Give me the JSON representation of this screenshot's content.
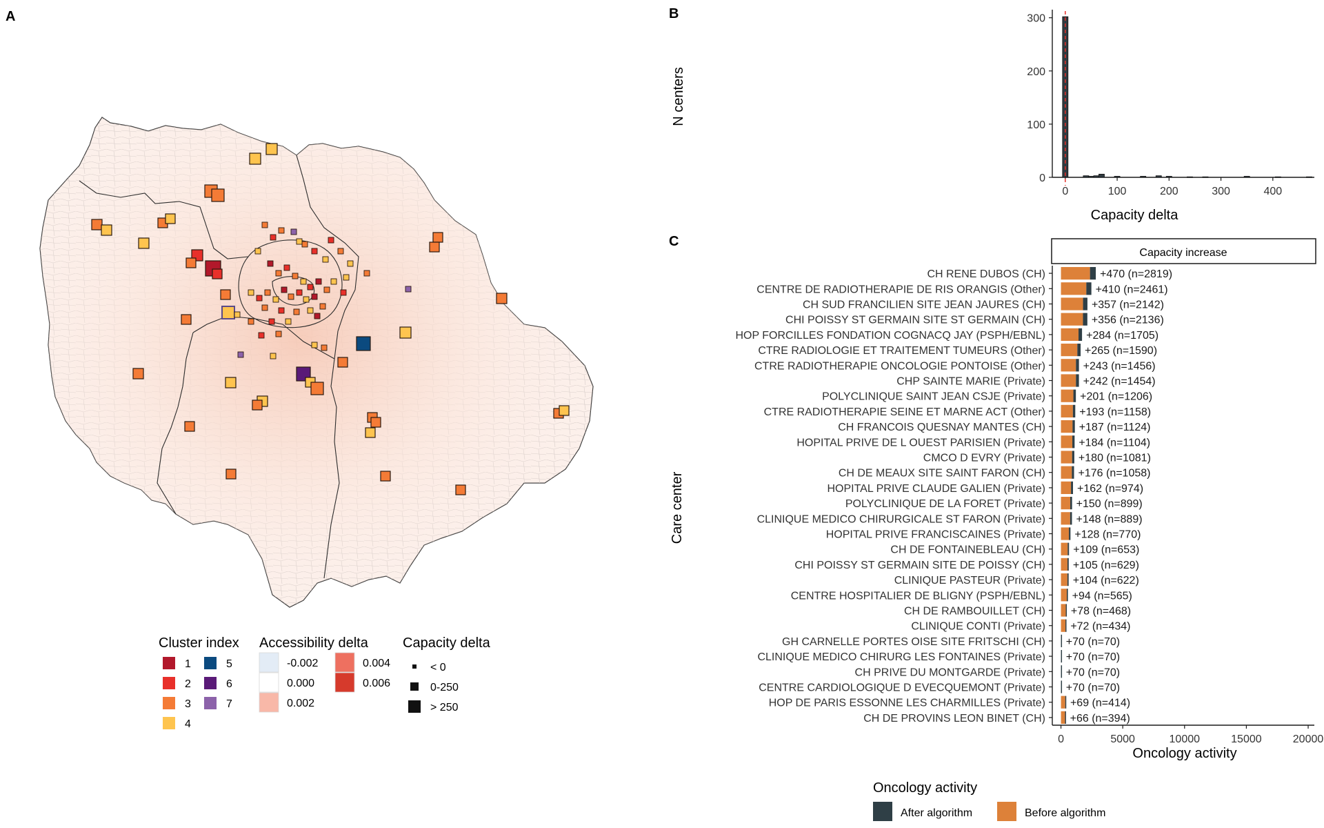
{
  "panels": {
    "a": {
      "letter": "A"
    },
    "b": {
      "letter": "B"
    },
    "c": {
      "letter": "C"
    }
  },
  "map": {
    "legend": {
      "cluster": {
        "title": "Cluster index",
        "items": [
          {
            "label": "1",
            "color": "#B2182B"
          },
          {
            "label": "2",
            "color": "#E8302A"
          },
          {
            "label": "3",
            "color": "#F47B36"
          },
          {
            "label": "4",
            "color": "#FEC44F"
          },
          {
            "label": "5",
            "color": "#0B4A7F"
          },
          {
            "label": "6",
            "color": "#5A1A78"
          },
          {
            "label": "7",
            "color": "#8C62AA"
          }
        ]
      },
      "accessibility": {
        "title": "Accessibility delta",
        "items": [
          {
            "label": "-0.002",
            "color": "#E3ECF6"
          },
          {
            "label": "0.000",
            "color": "#FFFFFF"
          },
          {
            "label": "0.002",
            "color": "#F8B8A8"
          },
          {
            "label": "0.004",
            "color": "#EE7060"
          },
          {
            "label": "0.006",
            "color": "#D63A2C"
          }
        ]
      },
      "capacity": {
        "title": "Capacity delta",
        "items": [
          {
            "label": "< 0",
            "level": 0
          },
          {
            "label": "0-250",
            "level": 1
          },
          {
            "label": "> 250",
            "level": 2
          }
        ]
      }
    }
  },
  "chart_data": [
    {
      "type": "bar",
      "panel": "B",
      "subtype": "histogram",
      "xlabel": "Capacity delta",
      "ylabel": "N centers",
      "xlim": [
        -25,
        480
      ],
      "ylim": [
        0,
        310
      ],
      "xticks": [
        0,
        100,
        200,
        300,
        400
      ],
      "yticks": [
        0,
        100,
        200,
        300
      ],
      "reference_line_x": 0,
      "reference_line_color": "#E8302A",
      "bar_color": "#2F3A40",
      "bins": [
        {
          "x": 0,
          "count": 302
        },
        {
          "x": 40,
          "count": 3
        },
        {
          "x": 50,
          "count": 2
        },
        {
          "x": 60,
          "count": 3
        },
        {
          "x": 70,
          "count": 6
        },
        {
          "x": 100,
          "count": 2
        },
        {
          "x": 150,
          "count": 2
        },
        {
          "x": 180,
          "count": 3
        },
        {
          "x": 200,
          "count": 2
        },
        {
          "x": 240,
          "count": 1
        },
        {
          "x": 270,
          "count": 1
        },
        {
          "x": 350,
          "count": 2
        },
        {
          "x": 410,
          "count": 1
        },
        {
          "x": 470,
          "count": 1
        }
      ]
    },
    {
      "type": "bar",
      "panel": "C",
      "orientation": "horizontal",
      "stacked": true,
      "facet_title": "Capacity increase",
      "xlabel": "Oncology activity",
      "ylabel": "Care center",
      "xlim": [
        -700,
        20500
      ],
      "xticks": [
        "0",
        "5000",
        "10000",
        "15000",
        "20000"
      ],
      "legend": {
        "title": "Oncology activity",
        "position": "bottom",
        "items": [
          {
            "label": "After algorithm",
            "color": "#2F3F46"
          },
          {
            "label": "Before algorithm",
            "color": "#DD8139"
          }
        ]
      },
      "categories": [
        "CH RENE DUBOS (CH)",
        "CENTRE DE RADIOTHERAPIE DE RIS ORANGIS (Other)",
        "CH SUD FRANCILIEN SITE JEAN JAURES (CH)",
        "CHI POISSY ST GERMAIN SITE ST GERMAIN (CH)",
        "HOP FORCILLES FONDATION COGNACQ JAY (PSPH/EBNL)",
        "CTRE RADIOLOGIE ET TRAITEMENT TUMEURS (Other)",
        "CTRE RADIOTHERAPIE ONCOLOGIE PONTOISE (Other)",
        "CHP SAINTE MARIE (Private)",
        "POLYCLINIQUE SAINT JEAN CSJE (Private)",
        "CTRE RADIOTHERAPIE SEINE ET MARNE ACT (Other)",
        "CH FRANCOIS QUESNAY MANTES (CH)",
        "HOPITAL PRIVE DE L OUEST PARISIEN (Private)",
        "CMCO D EVRY (Private)",
        "CH DE MEAUX  SITE SAINT FARON (CH)",
        "HOPITAL PRIVE CLAUDE GALIEN (Private)",
        "POLYCLINIQUE DE LA FORET (Private)",
        "CLINIQUE MEDICO CHIRURGICALE ST FARON (Private)",
        "HOPITAL PRIVE FRANCISCAINES (Private)",
        "CH DE FONTAINEBLEAU (CH)",
        "CHI POISSY ST GERMAIN SITE DE POISSY (CH)",
        "CLINIQUE PASTEUR (Private)",
        "CENTRE HOSPITALIER DE BLIGNY (PSPH/EBNL)",
        "CH DE RAMBOUILLET (CH)",
        "CLINIQUE CONTI (Private)",
        "GH CARNELLE PORTES OISE SITE FRITSCHI (CH)",
        "CLINIQUE MEDICO CHIRURG LES FONTAINES (Private)",
        "CH PRIVE DU MONTGARDE (Private)",
        "CENTRE CARDIOLOGIQUE D EVECQUEMONT (Private)",
        "HOP DE PARIS ESSONNE LES CHARMILLES (Private)",
        "CH DE PROVINS LEON BINET (CH)"
      ],
      "series": [
        {
          "name": "Before algorithm",
          "values": [
            2349,
            2051,
            1785,
            1780,
            1421,
            1325,
            1213,
            1212,
            1005,
            965,
            937,
            920,
            901,
            882,
            812,
            749,
            741,
            642,
            544,
            524,
            518,
            471,
            390,
            362,
            0,
            0,
            0,
            0,
            345,
            328
          ]
        },
        {
          "name": "After algorithm",
          "values": [
            470,
            410,
            357,
            356,
            284,
            265,
            243,
            242,
            201,
            193,
            187,
            184,
            180,
            176,
            162,
            150,
            148,
            128,
            109,
            105,
            104,
            94,
            78,
            72,
            70,
            70,
            70,
            70,
            69,
            66
          ]
        }
      ],
      "data_labels": [
        "+470 (n=2819)",
        "+410 (n=2461)",
        "+357 (n=2142)",
        "+356 (n=2136)",
        "+284 (n=1705)",
        "+265 (n=1590)",
        "+243 (n=1456)",
        "+242 (n=1454)",
        "+201 (n=1206)",
        "+193 (n=1158)",
        "+187 (n=1124)",
        "+184 (n=1104)",
        "+180 (n=1081)",
        "+176 (n=1058)",
        "+162 (n=974)",
        "+150 (n=899)",
        "+148 (n=889)",
        "+128 (n=770)",
        "+109 (n=653)",
        "+105 (n=629)",
        "+104 (n=622)",
        "+94 (n=565)",
        "+78 (n=468)",
        "+72 (n=434)",
        "+70 (n=70)",
        "+70 (n=70)",
        "+70 (n=70)",
        "+70 (n=70)",
        "+69 (n=414)",
        "+66 (n=394)"
      ]
    }
  ]
}
